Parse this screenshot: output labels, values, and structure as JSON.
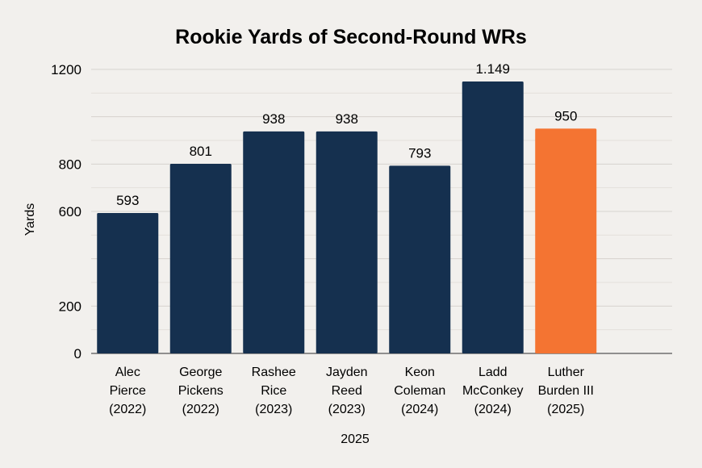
{
  "chart_data": {
    "type": "bar",
    "title": "Rookie Yards of Second-Round WRs",
    "xlabel": "2025",
    "ylabel": "Yards",
    "ylim": [
      0,
      1200
    ],
    "yticks": [
      "0",
      "200",
      "600",
      "800",
      "1200"
    ],
    "grid": true,
    "categories": [
      [
        "Alec",
        "Pierce",
        "(2022)"
      ],
      [
        "George",
        "Pickens",
        "(2022)"
      ],
      [
        "Rashee",
        "Rice",
        "(2023)"
      ],
      [
        "Jayden",
        "Reed",
        "(2023)"
      ],
      [
        "Keon",
        "Coleman",
        "(2024)"
      ],
      [
        "Ladd",
        "McConkey",
        "(2024)"
      ],
      [
        "Luther",
        "Burden III",
        "(2025)"
      ]
    ],
    "values": [
      593,
      801,
      938,
      938,
      793,
      1149,
      950
    ],
    "value_labels": [
      "593",
      "801",
      "938",
      "938",
      "793",
      "1.149",
      "950"
    ],
    "colors": [
      "#15304f",
      "#15304f",
      "#15304f",
      "#15304f",
      "#15304f",
      "#15304f",
      "#f47432"
    ]
  }
}
